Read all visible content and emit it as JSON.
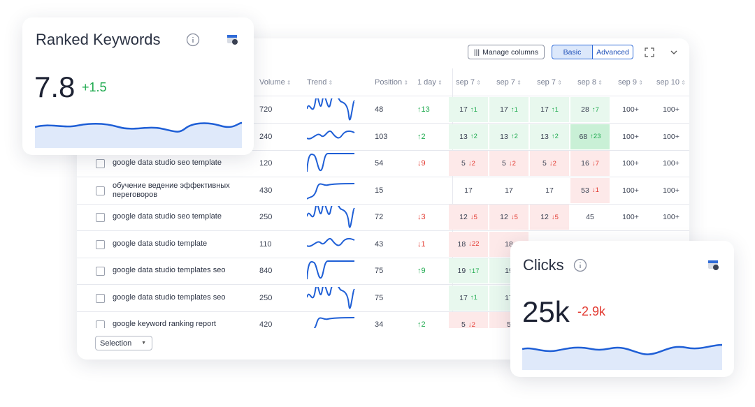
{
  "toolbar": {
    "manage_columns": "Manage columns",
    "basic": "Basic",
    "advanced": "Advanced"
  },
  "table": {
    "columns": [
      "Volume",
      "Trend",
      "Position",
      "1 day",
      "sep 7",
      "sep 7",
      "sep 7",
      "sep 8",
      "sep 9",
      "sep 10"
    ],
    "rows": [
      {
        "keyword": null,
        "volume": "720",
        "position": "48",
        "change": "↑13",
        "cells": [
          {
            "text": "17",
            "change": "↑1",
            "tone": "up"
          },
          {
            "text": "17",
            "change": "↑1",
            "tone": "up"
          },
          {
            "text": "17",
            "change": "↑1",
            "tone": "up"
          },
          {
            "text": "28",
            "change": "↑7",
            "tone": "up"
          },
          {
            "text": "100+"
          },
          {
            "text": "100+"
          }
        ]
      },
      {
        "keyword": null,
        "volume": "240",
        "position": "103",
        "change": "↑2",
        "cells": [
          {
            "text": "13",
            "change": "↑2",
            "tone": "up"
          },
          {
            "text": "13",
            "change": "↑2",
            "tone": "up"
          },
          {
            "text": "13",
            "change": "↑2",
            "tone": "up"
          },
          {
            "text": "68",
            "change": "↑23",
            "tone": "strong-up"
          },
          {
            "text": "100+"
          },
          {
            "text": "100+"
          }
        ]
      },
      {
        "keyword": "google data studio seo template",
        "volume": "120",
        "position": "54",
        "change": "↓9",
        "cells": [
          {
            "text": "5",
            "change": "↓2",
            "tone": "down"
          },
          {
            "text": "5",
            "change": "↓2",
            "tone": "down"
          },
          {
            "text": "5",
            "change": "↓2",
            "tone": "down"
          },
          {
            "text": "16",
            "change": "↓7",
            "tone": "down"
          },
          {
            "text": "100+"
          },
          {
            "text": "100+"
          }
        ]
      },
      {
        "keyword": "обучение ведение эффективных переговоров",
        "volume": "430",
        "position": "15",
        "change": null,
        "cells": [
          {
            "text": "17"
          },
          {
            "text": "17"
          },
          {
            "text": "17"
          },
          {
            "text": "53",
            "change": "↓1",
            "tone": "down"
          },
          {
            "text": "100+"
          },
          {
            "text": "100+"
          }
        ]
      },
      {
        "keyword": "google data studio seo template",
        "volume": "250",
        "position": "72",
        "change": "↓3",
        "cells": [
          {
            "text": "12",
            "change": "↓5",
            "tone": "down"
          },
          {
            "text": "12",
            "change": "↓5",
            "tone": "down"
          },
          {
            "text": "12",
            "change": "↓5",
            "tone": "down"
          },
          {
            "text": "45"
          },
          {
            "text": "100+"
          },
          {
            "text": "100+"
          }
        ]
      },
      {
        "keyword": "google data studio template",
        "volume": "110",
        "position": "43",
        "change": "↓1",
        "cells": [
          {
            "text": "18",
            "change": "↓22",
            "tone": "down"
          },
          {
            "text": "18",
            "tone": "down"
          }
        ]
      },
      {
        "keyword": "google data studio templates seo",
        "volume": "840",
        "position": "75",
        "change": "↑9",
        "cells": [
          {
            "text": "19",
            "change": "↑17",
            "tone": "up"
          },
          {
            "text": "19",
            "tone": "up"
          }
        ]
      },
      {
        "keyword": "google data studio templates seo",
        "volume": "250",
        "position": "75",
        "change": null,
        "cells": [
          {
            "text": "17",
            "change": "↑1",
            "tone": "up"
          },
          {
            "text": "17",
            "tone": "up"
          }
        ]
      },
      {
        "keyword": "google keyword ranking report",
        "volume": "420",
        "position": "34",
        "change": "↑2",
        "cells": [
          {
            "text": "5",
            "change": "↓2",
            "tone": "down"
          },
          {
            "text": "5",
            "tone": "down"
          }
        ]
      }
    ]
  },
  "selection": "Selection",
  "ranked_card": {
    "title": "Ranked Keywords",
    "value": "7.8",
    "delta": "+1.5"
  },
  "clicks_card": {
    "title": "Clicks",
    "value": "25k",
    "delta": "-2.9k"
  }
}
